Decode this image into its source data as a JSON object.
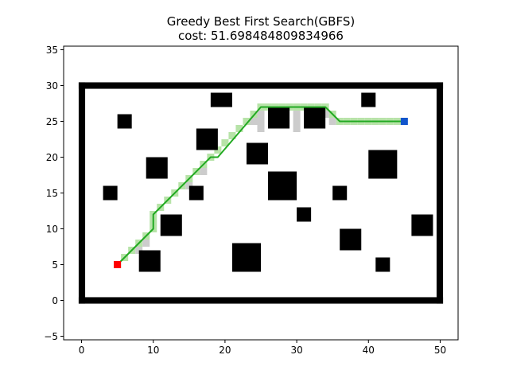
{
  "chart_data": {
    "type": "scatter",
    "title": "Greedy Best First Search(GBFS)",
    "subtitle": "cost: 51.698484809834966",
    "xlabel": "",
    "ylabel": "",
    "xlim": [
      -2.5,
      52.5
    ],
    "ylim": [
      -5.5,
      35.5
    ],
    "x_ticks": [
      0,
      10,
      20,
      30,
      40,
      50
    ],
    "y_ticks": [
      -5,
      0,
      5,
      10,
      15,
      20,
      25,
      30,
      35
    ],
    "grid": false,
    "boundary": {
      "x": [
        0,
        50
      ],
      "y": [
        0,
        30
      ],
      "color": "#000000"
    },
    "obstacles": [
      {
        "x": 18,
        "y": 27,
        "w": 3,
        "h": 2
      },
      {
        "x": 5,
        "y": 24,
        "w": 2,
        "h": 2
      },
      {
        "x": 26,
        "y": 24,
        "w": 3,
        "h": 3
      },
      {
        "x": 31,
        "y": 24,
        "w": 3,
        "h": 3
      },
      {
        "x": 39,
        "y": 27,
        "w": 2,
        "h": 2
      },
      {
        "x": 16,
        "y": 21,
        "w": 3,
        "h": 3
      },
      {
        "x": 23,
        "y": 19,
        "w": 3,
        "h": 3
      },
      {
        "x": 40,
        "y": 17,
        "w": 4,
        "h": 4
      },
      {
        "x": 9,
        "y": 17,
        "w": 3,
        "h": 3
      },
      {
        "x": 26,
        "y": 14,
        "w": 4,
        "h": 4
      },
      {
        "x": 3,
        "y": 14,
        "w": 2,
        "h": 2
      },
      {
        "x": 15,
        "y": 14,
        "w": 2,
        "h": 2
      },
      {
        "x": 35,
        "y": 14,
        "w": 2,
        "h": 2
      },
      {
        "x": 30,
        "y": 11,
        "w": 2,
        "h": 2
      },
      {
        "x": 46,
        "y": 9,
        "w": 3,
        "h": 3
      },
      {
        "x": 11,
        "y": 9,
        "w": 3,
        "h": 3
      },
      {
        "x": 36,
        "y": 7,
        "w": 3,
        "h": 3
      },
      {
        "x": 8,
        "y": 4,
        "w": 3,
        "h": 3
      },
      {
        "x": 21,
        "y": 4,
        "w": 4,
        "h": 4
      },
      {
        "x": 41,
        "y": 4,
        "w": 2,
        "h": 2
      }
    ],
    "visited_cells": [
      [
        5,
        5
      ],
      [
        6,
        6
      ],
      [
        7,
        7
      ],
      [
        8,
        8
      ],
      [
        9,
        9
      ],
      [
        10,
        10
      ],
      [
        10,
        11
      ],
      [
        10,
        12
      ],
      [
        11,
        13
      ],
      [
        12,
        14
      ],
      [
        13,
        15
      ],
      [
        14,
        16
      ],
      [
        15,
        17
      ],
      [
        16,
        18
      ],
      [
        17,
        19
      ],
      [
        18,
        20
      ],
      [
        19,
        21
      ],
      [
        20,
        22
      ],
      [
        21,
        23
      ],
      [
        22,
        24
      ],
      [
        23,
        25
      ],
      [
        24,
        26
      ],
      [
        25,
        27
      ],
      [
        26,
        27
      ],
      [
        27,
        27
      ],
      [
        28,
        27
      ],
      [
        29,
        27
      ],
      [
        30,
        27
      ],
      [
        31,
        27
      ],
      [
        32,
        27
      ],
      [
        33,
        27
      ],
      [
        34,
        27
      ],
      [
        35,
        26
      ],
      [
        36,
        25
      ],
      [
        37,
        25
      ],
      [
        38,
        25
      ],
      [
        39,
        25
      ],
      [
        40,
        25
      ],
      [
        41,
        25
      ],
      [
        42,
        25
      ],
      [
        43,
        25
      ],
      [
        44,
        25
      ],
      [
        25,
        26
      ],
      [
        25,
        25
      ],
      [
        25,
        24
      ],
      [
        30,
        26
      ],
      [
        30,
        25
      ],
      [
        30,
        24
      ],
      [
        34,
        26
      ],
      [
        35,
        25
      ],
      [
        24,
        25
      ],
      [
        8,
        7
      ],
      [
        9,
        8
      ],
      [
        17,
        18
      ],
      [
        15,
        16
      ]
    ],
    "path": {
      "name": "",
      "color": "#22aa22",
      "x": [
        5,
        10,
        10,
        18,
        19,
        25,
        34,
        36,
        45
      ],
      "y": [
        5,
        10,
        12,
        20,
        20,
        27,
        27,
        25,
        25
      ]
    },
    "start": {
      "x": 5,
      "y": 5,
      "color": "#ff0000"
    },
    "goal": {
      "x": 45,
      "y": 25,
      "color": "#1155cc"
    },
    "colors": {
      "visited": "#cccccc",
      "visited_path": "#b7e3a8",
      "obstacle": "#000000"
    }
  }
}
